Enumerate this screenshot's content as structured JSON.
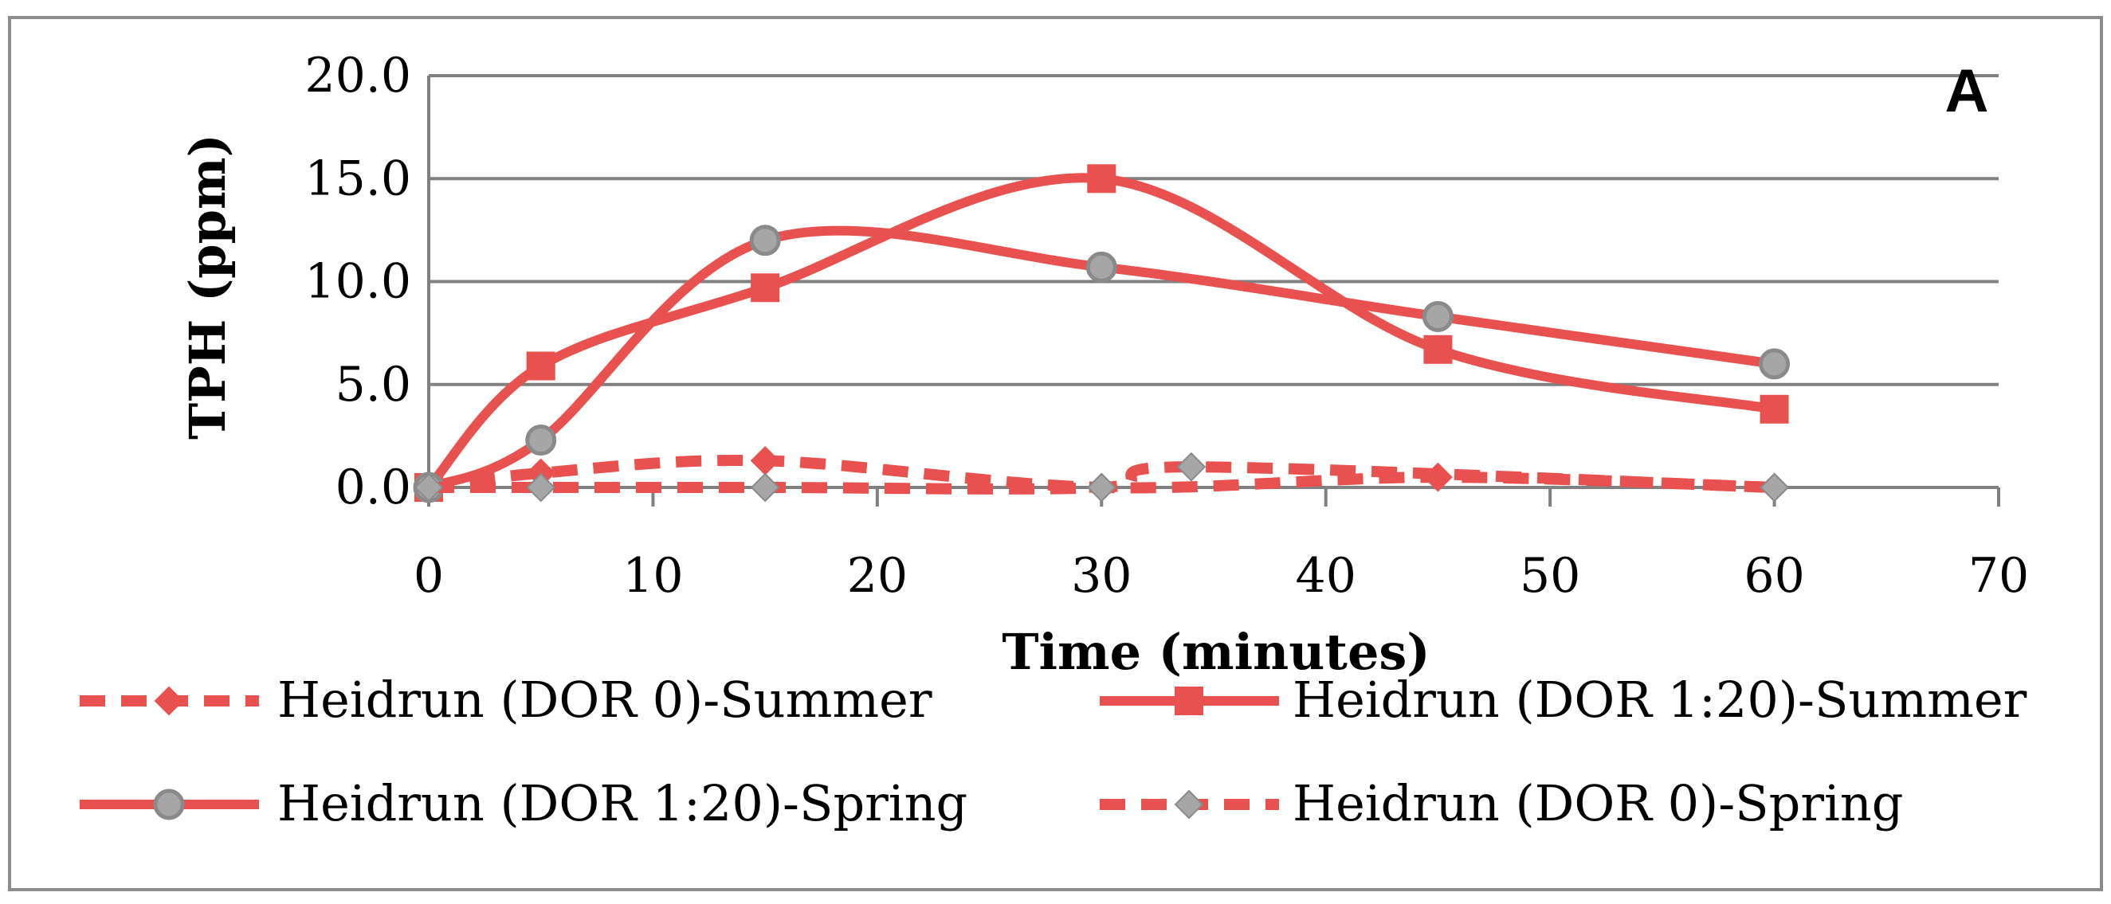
{
  "chart_data": {
    "type": "line",
    "panel_label": "A",
    "xlabel": "Time (minutes)",
    "ylabel": "TPH (ppm)",
    "xlim": [
      0,
      70
    ],
    "ylim": [
      0,
      20
    ],
    "x_ticks": [
      0,
      10,
      20,
      30,
      40,
      50,
      60,
      70
    ],
    "y_ticks": [
      "0.0",
      "5.0",
      "10.0",
      "15.0",
      "20.0"
    ],
    "grid": "horizontal",
    "legend_position": "bottom",
    "smooth": true,
    "series": [
      {
        "name": "Heidrun (DOR 0)-Summer",
        "color": "#E8514F",
        "line_style": "dashed",
        "marker": "diamond",
        "marker_color": "#E8514F",
        "points": [
          [
            0,
            0.0
          ],
          [
            5,
            0.7
          ],
          [
            15,
            1.3
          ],
          [
            30,
            0.0
          ],
          [
            45,
            0.5
          ],
          [
            60,
            0.0
          ]
        ]
      },
      {
        "name": "Heidrun (DOR 1:20)-Summer",
        "color": "#E8514F",
        "line_style": "solid",
        "marker": "square",
        "marker_color": "#E8514F",
        "points": [
          [
            0,
            0.0
          ],
          [
            5,
            5.9
          ],
          [
            15,
            9.7
          ],
          [
            30,
            15.0
          ],
          [
            45,
            6.7
          ],
          [
            60,
            3.8
          ]
        ]
      },
      {
        "name": "Heidrun (DOR 1:20)-Spring",
        "color": "#E8514F",
        "line_style": "solid",
        "marker": "circle",
        "marker_color": "#A6A6A6",
        "points": [
          [
            0,
            0.0
          ],
          [
            5,
            2.3
          ],
          [
            15,
            12.0
          ],
          [
            30,
            10.7
          ],
          [
            45,
            8.3
          ],
          [
            60,
            6.0
          ]
        ]
      },
      {
        "name": "Heidrun (DOR 0)-Spring",
        "color": "#E8514F",
        "line_style": "dashed",
        "marker": "diamond",
        "marker_color": "#A6A6A6",
        "points": [
          [
            0,
            0.0
          ],
          [
            5,
            0.0
          ],
          [
            15,
            0.0
          ],
          [
            30,
            0.0
          ],
          [
            34,
            1.0
          ],
          [
            60,
            0.0
          ]
        ]
      }
    ]
  }
}
